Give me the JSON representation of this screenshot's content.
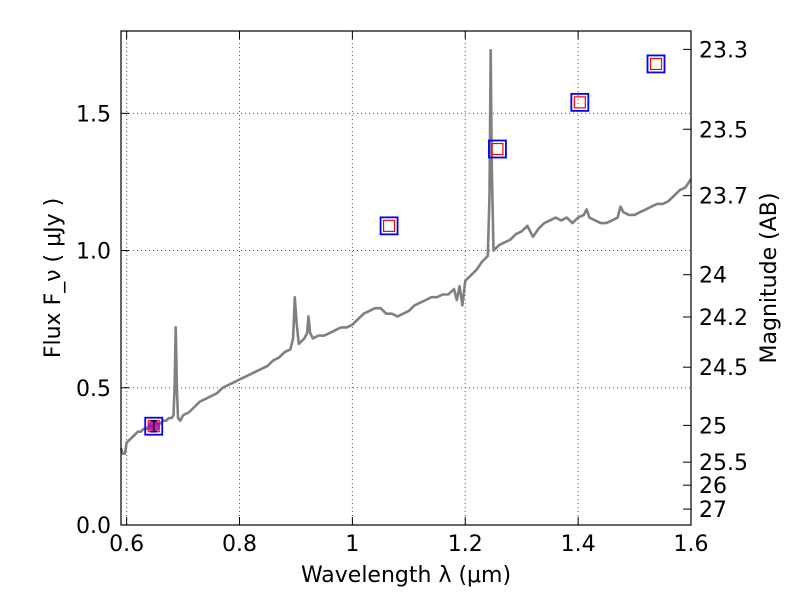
{
  "chart_data": {
    "type": "line",
    "title": "",
    "xlabel": "Wavelength  λ (μm)",
    "ylabel": "Flux  F_ν  ( μJy )",
    "ylabel_right": "Magnitude (AB)",
    "xlim": [
      0.59,
      1.6
    ],
    "ylim": [
      0.0,
      1.8
    ],
    "grid": true,
    "x_ticks": [
      {
        "value": 0.6,
        "label": "0.6"
      },
      {
        "value": 0.8,
        "label": "0.8"
      },
      {
        "value": 1.0,
        "label": "1"
      },
      {
        "value": 1.2,
        "label": "1.2"
      },
      {
        "value": 1.4,
        "label": "1.4"
      },
      {
        "value": 1.6,
        "label": "1.6"
      }
    ],
    "y_ticks": [
      {
        "value": 0.0,
        "label": "0.0"
      },
      {
        "value": 0.5,
        "label": "0.5"
      },
      {
        "value": 1.0,
        "label": "1.0"
      },
      {
        "value": 1.5,
        "label": "1.5"
      }
    ],
    "right_ticks": [
      {
        "flux": 1.733,
        "label": "23.3"
      },
      {
        "flux": 1.442,
        "label": "23.5"
      },
      {
        "flux": 1.2,
        "label": "23.7"
      },
      {
        "flux": 0.912,
        "label": "24"
      },
      {
        "flux": 0.758,
        "label": "24.2"
      },
      {
        "flux": 0.575,
        "label": "24.5"
      },
      {
        "flux": 0.363,
        "label": "25"
      },
      {
        "flux": 0.229,
        "label": "25.5"
      },
      {
        "flux": 0.145,
        "label": "26"
      },
      {
        "flux": 0.058,
        "label": "27"
      }
    ],
    "series": [
      {
        "name": "spectrum",
        "color": "#808080",
        "points": [
          [
            0.59,
            0.28
          ],
          [
            0.593,
            0.26
          ],
          [
            0.597,
            0.26
          ],
          [
            0.6,
            0.3
          ],
          [
            0.605,
            0.31
          ],
          [
            0.61,
            0.32
          ],
          [
            0.615,
            0.33
          ],
          [
            0.62,
            0.34
          ],
          [
            0.625,
            0.34
          ],
          [
            0.63,
            0.35
          ],
          [
            0.635,
            0.35
          ],
          [
            0.64,
            0.36
          ],
          [
            0.645,
            0.36
          ],
          [
            0.65,
            0.37
          ],
          [
            0.655,
            0.37
          ],
          [
            0.66,
            0.37
          ],
          [
            0.665,
            0.38
          ],
          [
            0.67,
            0.38
          ],
          [
            0.675,
            0.39
          ],
          [
            0.68,
            0.39
          ],
          [
            0.683,
            0.4
          ],
          [
            0.685,
            0.5
          ],
          [
            0.687,
            0.72
          ],
          [
            0.689,
            0.5
          ],
          [
            0.691,
            0.39
          ],
          [
            0.695,
            0.38
          ],
          [
            0.7,
            0.4
          ],
          [
            0.71,
            0.41
          ],
          [
            0.72,
            0.43
          ],
          [
            0.73,
            0.45
          ],
          [
            0.74,
            0.46
          ],
          [
            0.75,
            0.47
          ],
          [
            0.76,
            0.48
          ],
          [
            0.77,
            0.5
          ],
          [
            0.78,
            0.51
          ],
          [
            0.79,
            0.52
          ],
          [
            0.8,
            0.53
          ],
          [
            0.81,
            0.54
          ],
          [
            0.82,
            0.55
          ],
          [
            0.83,
            0.56
          ],
          [
            0.84,
            0.57
          ],
          [
            0.85,
            0.58
          ],
          [
            0.86,
            0.6
          ],
          [
            0.87,
            0.61
          ],
          [
            0.88,
            0.63
          ],
          [
            0.89,
            0.64
          ],
          [
            0.895,
            0.68
          ],
          [
            0.898,
            0.83
          ],
          [
            0.901,
            0.74
          ],
          [
            0.905,
            0.66
          ],
          [
            0.91,
            0.67
          ],
          [
            0.915,
            0.68
          ],
          [
            0.92,
            0.7
          ],
          [
            0.922,
            0.76
          ],
          [
            0.925,
            0.7
          ],
          [
            0.93,
            0.68
          ],
          [
            0.94,
            0.69
          ],
          [
            0.95,
            0.69
          ],
          [
            0.96,
            0.7
          ],
          [
            0.97,
            0.71
          ],
          [
            0.98,
            0.72
          ],
          [
            0.99,
            0.72
          ],
          [
            1.0,
            0.73
          ],
          [
            1.01,
            0.75
          ],
          [
            1.02,
            0.77
          ],
          [
            1.03,
            0.78
          ],
          [
            1.04,
            0.79
          ],
          [
            1.05,
            0.79
          ],
          [
            1.06,
            0.77
          ],
          [
            1.07,
            0.77
          ],
          [
            1.08,
            0.76
          ],
          [
            1.09,
            0.77
          ],
          [
            1.1,
            0.78
          ],
          [
            1.11,
            0.8
          ],
          [
            1.12,
            0.81
          ],
          [
            1.13,
            0.82
          ],
          [
            1.14,
            0.83
          ],
          [
            1.15,
            0.83
          ],
          [
            1.16,
            0.84
          ],
          [
            1.17,
            0.84
          ],
          [
            1.18,
            0.86
          ],
          [
            1.185,
            0.82
          ],
          [
            1.19,
            0.87
          ],
          [
            1.195,
            0.8
          ],
          [
            1.2,
            0.89
          ],
          [
            1.21,
            0.91
          ],
          [
            1.22,
            0.93
          ],
          [
            1.23,
            0.96
          ],
          [
            1.24,
            0.98
          ],
          [
            1.243,
            1.2
          ],
          [
            1.245,
            1.73
          ],
          [
            1.247,
            1.3
          ],
          [
            1.25,
            1.0
          ],
          [
            1.26,
            1.02
          ],
          [
            1.27,
            1.03
          ],
          [
            1.28,
            1.04
          ],
          [
            1.29,
            1.06
          ],
          [
            1.3,
            1.07
          ],
          [
            1.31,
            1.09
          ],
          [
            1.32,
            1.05
          ],
          [
            1.33,
            1.08
          ],
          [
            1.34,
            1.1
          ],
          [
            1.35,
            1.11
          ],
          [
            1.36,
            1.12
          ],
          [
            1.37,
            1.11
          ],
          [
            1.38,
            1.12
          ],
          [
            1.39,
            1.1
          ],
          [
            1.4,
            1.12
          ],
          [
            1.41,
            1.13
          ],
          [
            1.415,
            1.15
          ],
          [
            1.42,
            1.12
          ],
          [
            1.43,
            1.11
          ],
          [
            1.44,
            1.1
          ],
          [
            1.45,
            1.1
          ],
          [
            1.46,
            1.11
          ],
          [
            1.47,
            1.12
          ],
          [
            1.475,
            1.16
          ],
          [
            1.48,
            1.14
          ],
          [
            1.49,
            1.13
          ],
          [
            1.5,
            1.13
          ],
          [
            1.51,
            1.14
          ],
          [
            1.52,
            1.15
          ],
          [
            1.53,
            1.16
          ],
          [
            1.54,
            1.17
          ],
          [
            1.55,
            1.17
          ],
          [
            1.56,
            1.18
          ],
          [
            1.57,
            1.2
          ],
          [
            1.58,
            1.22
          ],
          [
            1.59,
            1.23
          ],
          [
            1.6,
            1.26
          ]
        ]
      }
    ],
    "photometry": [
      {
        "x": 0.648,
        "y": 0.36,
        "color_outer": "#0000ff",
        "color_inner": "#ff0000"
      },
      {
        "x": 1.065,
        "y": 1.09,
        "color_outer": "#0000ff",
        "color_inner": "#ff0000"
      },
      {
        "x": 1.257,
        "y": 1.37,
        "color_outer": "#0000ff",
        "color_inner": "#ff0000"
      },
      {
        "x": 1.403,
        "y": 1.54,
        "color_outer": "#0000ff",
        "color_inner": "#ff0000"
      },
      {
        "x": 1.538,
        "y": 1.68,
        "color_outer": "#0000ff",
        "color_inner": "#ff0000"
      }
    ],
    "measured_point": {
      "x": 0.648,
      "y": 0.36,
      "yerr": 0.02,
      "color": "#b000b0"
    }
  }
}
